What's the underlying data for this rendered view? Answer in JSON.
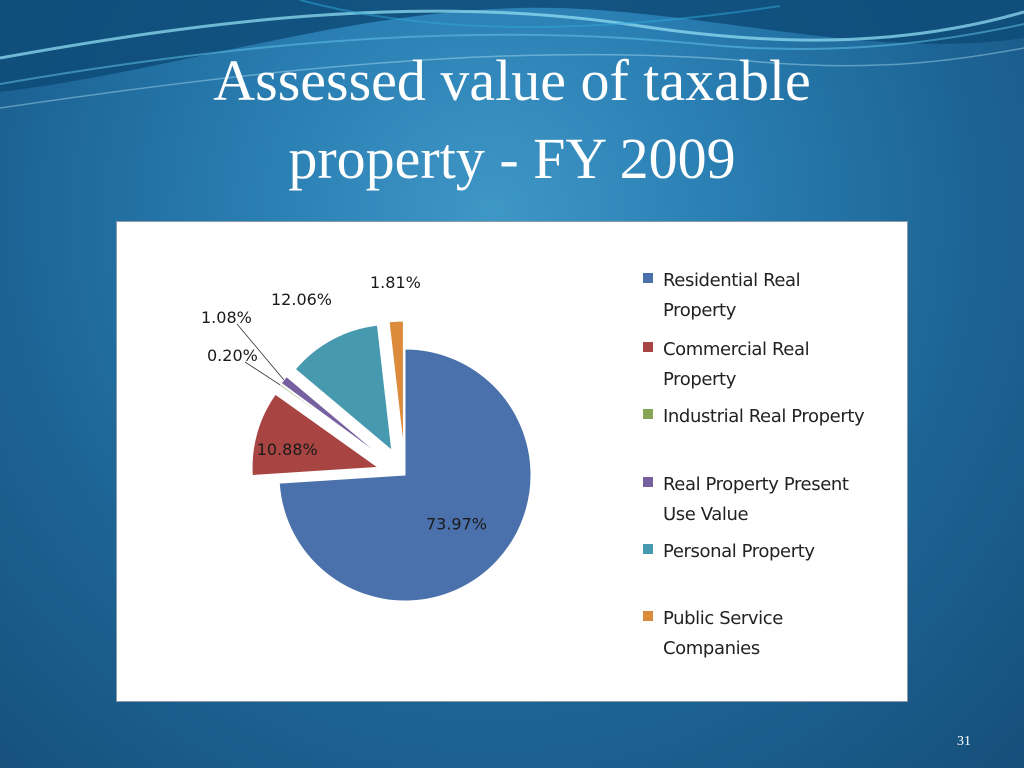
{
  "slide": {
    "title_line1": "Assessed value of taxable",
    "title_line2": "property - FY 2009",
    "page_number": "31"
  },
  "chart_data": {
    "type": "pie",
    "title": "",
    "exploded": true,
    "legend_position": "right",
    "slices": [
      {
        "name": "Residential Real Property",
        "value": 73.97,
        "label": "73.97%",
        "color": "#4a71ab",
        "label_inside": true
      },
      {
        "name": "Commercial Real Property",
        "value": 10.88,
        "label": "10.88%",
        "color": "#a84542",
        "label_inside": true
      },
      {
        "name": "Industrial Real Property",
        "value": 0.2,
        "label": "0.20%",
        "color": "#87a554",
        "label_inside": false
      },
      {
        "name": "Real Property Present Use Value",
        "value": 1.08,
        "label": "1.08%",
        "color": "#7760a0",
        "label_inside": false
      },
      {
        "name": "Personal Property",
        "value": 12.06,
        "label": "12.06%",
        "color": "#4699ae",
        "label_inside": false
      },
      {
        "name": "Public Service Companies",
        "value": 1.81,
        "label": "1.81%",
        "color": "#dc8a3c",
        "label_inside": false
      }
    ]
  },
  "legend": {
    "items": [
      {
        "line1": "Residential Real",
        "line2": "Property"
      },
      {
        "line1": "Commercial Real",
        "line2": "Property"
      },
      {
        "line1": "Industrial Real Property",
        "line2": ""
      },
      {
        "line1": "Real Property Present",
        "line2": "Use Value"
      },
      {
        "line1": "Personal Property",
        "line2": ""
      },
      {
        "line1": "Public Service",
        "line2": "Companies"
      }
    ]
  },
  "theme": {
    "slide_background": "#2a7fb3",
    "title_color": "#ffffff",
    "chart_background": "#ffffff"
  }
}
